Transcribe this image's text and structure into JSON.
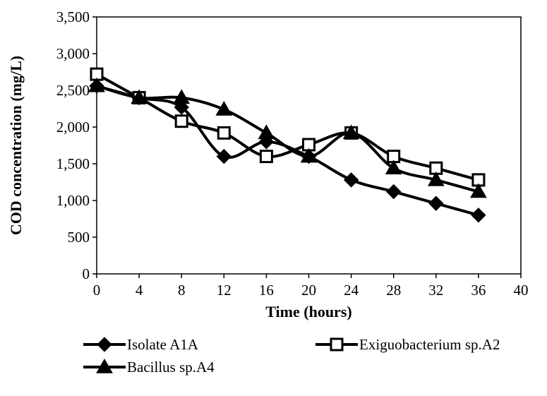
{
  "chart_data": {
    "type": "line",
    "xlabel": "Time (hours)",
    "ylabel": "COD  concentration (mg/L)",
    "xlim": [
      0,
      40
    ],
    "ylim": [
      0,
      3500
    ],
    "x_ticks": [
      "0",
      "4",
      "8",
      "12",
      "16",
      "20",
      "24",
      "28",
      "32",
      "36",
      "40"
    ],
    "y_ticks": [
      "0",
      "500",
      "1,000",
      "1,500",
      "2,000",
      "2,500",
      "3,000",
      "3,500"
    ],
    "grid": false,
    "smooth": true,
    "legend_position": "bottom",
    "x": [
      0,
      4,
      8,
      12,
      16,
      20,
      24,
      28,
      32,
      36
    ],
    "series": [
      {
        "name": "Isolate A1A",
        "marker": "diamond",
        "values": [
          2560,
          2400,
          2270,
          1600,
          1800,
          1600,
          1280,
          1120,
          960,
          800
        ]
      },
      {
        "name": "Exiguobacterium sp.A2",
        "marker": "square",
        "values": [
          2720,
          2400,
          2080,
          1920,
          1600,
          1760,
          1920,
          1600,
          1440,
          1280
        ]
      },
      {
        "name": "Bacillus sp.A4",
        "marker": "triangle",
        "values": [
          2560,
          2400,
          2400,
          2240,
          1920,
          1600,
          1920,
          1440,
          1280,
          1120
        ]
      }
    ],
    "line_color": "#000000"
  }
}
